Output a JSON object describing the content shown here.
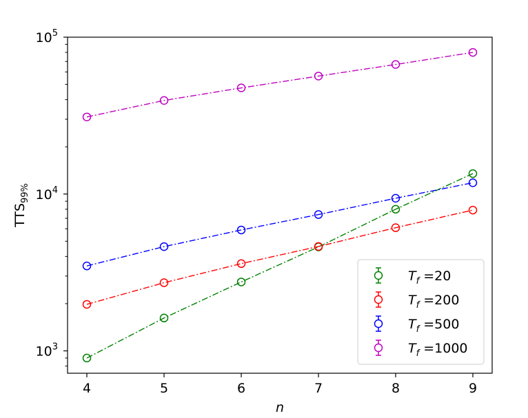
{
  "chart_data": {
    "type": "line",
    "scale": {
      "y": "log"
    },
    "xlabel": "n",
    "ylabel": {
      "main": "TTS",
      "sub": "99%"
    },
    "xlim": [
      3.75,
      9.25
    ],
    "ylim": [
      720,
      100000
    ],
    "x_ticks": [
      4,
      5,
      6,
      7,
      8,
      9
    ],
    "y_ticks": [
      {
        "value": 1000,
        "base": "10",
        "exp": "3"
      },
      {
        "value": 10000,
        "base": "10",
        "exp": "4"
      },
      {
        "value": 100000,
        "base": "10",
        "exp": "5"
      }
    ],
    "line_style": "dash-dot",
    "marker": "open-circle-with-errorbar",
    "grid": false,
    "legend": {
      "placement": "lower-right",
      "var": "T",
      "sub": "f",
      "eq": "="
    },
    "series": [
      {
        "name": "20",
        "color": "#008000",
        "x": [
          4,
          5,
          6,
          7,
          8,
          9
        ],
        "y": [
          900,
          1620,
          2750,
          4600,
          8000,
          13500
        ]
      },
      {
        "name": "200",
        "color": "#ff0000",
        "x": [
          4,
          5,
          6,
          7,
          8,
          9
        ],
        "y": [
          1980,
          2720,
          3600,
          4630,
          6100,
          7900
        ]
      },
      {
        "name": "500",
        "color": "#0000ff",
        "x": [
          4,
          5,
          6,
          7,
          8,
          9
        ],
        "y": [
          3480,
          4620,
          5900,
          7400,
          9400,
          11800
        ]
      },
      {
        "name": "1000",
        "color": "#bf00bf",
        "x": [
          4,
          5,
          6,
          7,
          8,
          9
        ],
        "y": [
          31000,
          39500,
          47500,
          56500,
          67000,
          80000
        ]
      }
    ]
  }
}
